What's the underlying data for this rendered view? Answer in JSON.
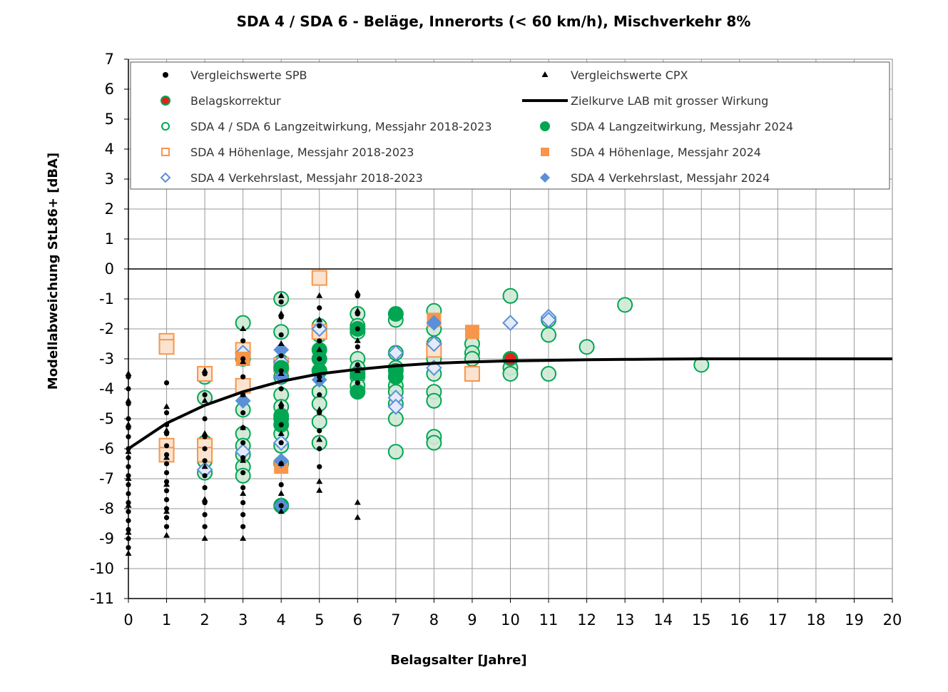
{
  "chart_data": {
    "type": "scatter",
    "title": "SDA 4 / SDA 6 - Beläge, Innerorts (< 60 km/h), Mischverkehr 8%",
    "xlabel": "Belagsalter [Jahre]",
    "ylabel": "Modellabweichung StL86+ [dBA]",
    "xlim": [
      0,
      20
    ],
    "ylim": [
      -11,
      7
    ],
    "xticks": [
      "0",
      "1",
      "2",
      "3",
      "4",
      "5",
      "6",
      "7",
      "8",
      "9",
      "10",
      "11",
      "12",
      "13",
      "14",
      "15",
      "16",
      "17",
      "18",
      "19",
      "20"
    ],
    "yticks": [
      "7",
      "6",
      "5",
      "4",
      "3",
      "2",
      "1",
      "0",
      "-1",
      "-2",
      "-3",
      "-4",
      "-5",
      "-6",
      "-7",
      "-8",
      "-9",
      "-10",
      "-11"
    ],
    "grid": true,
    "legend_position": "top",
    "colors": {
      "black": "#000000",
      "red": "#e3231b",
      "green": "#00a651",
      "orange": "#f7964a",
      "blue": "#5b8fd8"
    },
    "series": [
      {
        "name": "Vergleichswerte SPB",
        "marker": "dot-black",
        "points": [
          [
            0,
            -3.6
          ],
          [
            0,
            -4.0
          ],
          [
            0,
            -4.5
          ],
          [
            0,
            -5.0
          ],
          [
            0,
            -5.3
          ],
          [
            0,
            -5.6
          ],
          [
            0,
            -6.0
          ],
          [
            0,
            -6.3
          ],
          [
            0,
            -6.6
          ],
          [
            0,
            -6.9
          ],
          [
            0,
            -7.2
          ],
          [
            0,
            -7.5
          ],
          [
            0,
            -7.8
          ],
          [
            0,
            -8.1
          ],
          [
            0,
            -8.4
          ],
          [
            0,
            -8.7
          ],
          [
            0,
            -9.0
          ],
          [
            0,
            -9.3
          ],
          [
            1,
            -3.8
          ],
          [
            1,
            -4.8
          ],
          [
            1,
            -5.2
          ],
          [
            1,
            -5.5
          ],
          [
            1,
            -5.9
          ],
          [
            1,
            -6.2
          ],
          [
            1,
            -6.5
          ],
          [
            1,
            -6.8
          ],
          [
            1,
            -7.1
          ],
          [
            1,
            -7.4
          ],
          [
            1,
            -7.7
          ],
          [
            1,
            -8.0
          ],
          [
            1,
            -8.3
          ],
          [
            1,
            -8.6
          ],
          [
            2,
            -3.5
          ],
          [
            2,
            -4.2
          ],
          [
            2,
            -5.0
          ],
          [
            2,
            -5.6
          ],
          [
            2,
            -6.0
          ],
          [
            2,
            -6.4
          ],
          [
            2,
            -6.9
          ],
          [
            2,
            -7.3
          ],
          [
            2,
            -7.8
          ],
          [
            2,
            -8.2
          ],
          [
            2,
            -8.6
          ],
          [
            3,
            -2.4
          ],
          [
            3,
            -3.0
          ],
          [
            3,
            -3.6
          ],
          [
            3,
            -4.2
          ],
          [
            3,
            -4.8
          ],
          [
            3,
            -5.3
          ],
          [
            3,
            -5.8
          ],
          [
            3,
            -6.3
          ],
          [
            3,
            -6.8
          ],
          [
            3,
            -7.3
          ],
          [
            3,
            -7.8
          ],
          [
            3,
            -8.2
          ],
          [
            3,
            -8.6
          ],
          [
            4,
            -1.1
          ],
          [
            4,
            -1.6
          ],
          [
            4,
            -2.2
          ],
          [
            4,
            -2.9
          ],
          [
            4,
            -3.4
          ],
          [
            4,
            -4.0
          ],
          [
            4,
            -4.6
          ],
          [
            4,
            -5.2
          ],
          [
            4,
            -5.8
          ],
          [
            4,
            -6.5
          ],
          [
            4,
            -7.2
          ],
          [
            4,
            -7.9
          ],
          [
            5,
            -1.3
          ],
          [
            5,
            -1.9
          ],
          [
            5,
            -2.4
          ],
          [
            5,
            -3.0
          ],
          [
            5,
            -3.6
          ],
          [
            5,
            -4.2
          ],
          [
            5,
            -4.8
          ],
          [
            5,
            -5.4
          ],
          [
            5,
            -6.0
          ],
          [
            5,
            -6.6
          ],
          [
            6,
            -0.9
          ],
          [
            6,
            -1.5
          ],
          [
            6,
            -2.0
          ],
          [
            6,
            -2.6
          ],
          [
            6,
            -3.2
          ],
          [
            6,
            -3.8
          ]
        ]
      },
      {
        "name": "Vergleichswerte CPX",
        "marker": "triangle-black",
        "points": [
          [
            0,
            -3.5
          ],
          [
            0,
            -4.4
          ],
          [
            0,
            -5.2
          ],
          [
            0,
            -6.1
          ],
          [
            0,
            -7.0
          ],
          [
            0,
            -7.9
          ],
          [
            0,
            -8.8
          ],
          [
            0,
            -9.5
          ],
          [
            1,
            -4.6
          ],
          [
            1,
            -5.4
          ],
          [
            1,
            -6.3
          ],
          [
            1,
            -7.2
          ],
          [
            1,
            -8.1
          ],
          [
            1,
            -8.9
          ],
          [
            2,
            -3.4
          ],
          [
            2,
            -4.4
          ],
          [
            2,
            -5.5
          ],
          [
            2,
            -6.6
          ],
          [
            2,
            -7.7
          ],
          [
            2,
            -9.0
          ],
          [
            3,
            -2.0
          ],
          [
            3,
            -3.1
          ],
          [
            3,
            -4.2
          ],
          [
            3,
            -5.3
          ],
          [
            3,
            -6.4
          ],
          [
            3,
            -7.5
          ],
          [
            3,
            -9.0
          ],
          [
            4,
            -0.9
          ],
          [
            4,
            -1.5
          ],
          [
            4,
            -2.5
          ],
          [
            4,
            -3.5
          ],
          [
            4,
            -4.5
          ],
          [
            4,
            -5.5
          ],
          [
            4,
            -6.5
          ],
          [
            4,
            -7.5
          ],
          [
            4,
            -8.1
          ],
          [
            5,
            -0.9
          ],
          [
            5,
            -1.7
          ],
          [
            5,
            -2.7
          ],
          [
            5,
            -3.7
          ],
          [
            5,
            -4.7
          ],
          [
            5,
            -5.7
          ],
          [
            5,
            -7.1
          ],
          [
            5,
            -7.4
          ],
          [
            6,
            -0.8
          ],
          [
            6,
            -1.4
          ],
          [
            6,
            -2.4
          ],
          [
            6,
            -3.4
          ],
          [
            6,
            -7.8
          ],
          [
            6,
            -8.3
          ]
        ]
      },
      {
        "name": "Belagskorrektur",
        "marker": "dot-red",
        "points": [
          [
            10,
            -3.0
          ]
        ]
      },
      {
        "name": "Zielkurve LAB mit grosser Wirkung",
        "marker": "line-black",
        "points": [
          [
            0,
            -6.0
          ],
          [
            1,
            -5.15
          ],
          [
            2,
            -4.55
          ],
          [
            3,
            -4.1
          ],
          [
            4,
            -3.75
          ],
          [
            5,
            -3.5
          ],
          [
            6,
            -3.35
          ],
          [
            7,
            -3.23
          ],
          [
            8,
            -3.15
          ],
          [
            9,
            -3.1
          ],
          [
            10,
            -3.07
          ],
          [
            11,
            -3.05
          ],
          [
            12,
            -3.03
          ],
          [
            13,
            -3.02
          ],
          [
            14,
            -3.01
          ],
          [
            15,
            -3.0
          ],
          [
            16,
            -3.0
          ],
          [
            17,
            -3.0
          ],
          [
            18,
            -3.0
          ],
          [
            19,
            -3.0
          ],
          [
            20,
            -3.0
          ]
        ]
      },
      {
        "name": "SDA 4 / SDA 6 Langzeitwirkung, Messjahr 2018-2023",
        "marker": "circle-green-open",
        "points": [
          [
            2,
            -3.6
          ],
          [
            2,
            -4.3
          ],
          [
            2,
            -5.8
          ],
          [
            2,
            -6.1
          ],
          [
            2,
            -6.4
          ],
          [
            2,
            -6.8
          ],
          [
            3,
            -1.8
          ],
          [
            3,
            -3.0
          ],
          [
            3,
            -3.9
          ],
          [
            3,
            -4.7
          ],
          [
            3,
            -5.5
          ],
          [
            3,
            -5.9
          ],
          [
            3,
            -6.2
          ],
          [
            3,
            -6.6
          ],
          [
            3,
            -6.9
          ],
          [
            4,
            -1.0
          ],
          [
            4,
            -2.1
          ],
          [
            4,
            -3.1
          ],
          [
            4,
            -3.6
          ],
          [
            4,
            -4.2
          ],
          [
            4,
            -4.6
          ],
          [
            4,
            -5.0
          ],
          [
            4,
            -5.5
          ],
          [
            4,
            -5.9
          ],
          [
            4,
            -6.5
          ],
          [
            4,
            -7.9
          ],
          [
            5,
            -1.9
          ],
          [
            5,
            -2.2
          ],
          [
            5,
            -3.4
          ],
          [
            5,
            -4.1
          ],
          [
            5,
            -4.5
          ],
          [
            5,
            -5.1
          ],
          [
            5,
            -5.8
          ],
          [
            6,
            -1.5
          ],
          [
            6,
            -1.9
          ],
          [
            6,
            -2.1
          ],
          [
            6,
            -3.0
          ],
          [
            6,
            -3.3
          ],
          [
            6,
            -3.6
          ],
          [
            6,
            -3.9
          ],
          [
            7,
            -1.7
          ],
          [
            7,
            -2.8
          ],
          [
            7,
            -3.3
          ],
          [
            7,
            -3.9
          ],
          [
            7,
            -4.1
          ],
          [
            7,
            -4.5
          ],
          [
            7,
            -5.0
          ],
          [
            7,
            -6.1
          ],
          [
            8,
            -1.4
          ],
          [
            8,
            -2.0
          ],
          [
            8,
            -2.5
          ],
          [
            8,
            -3.0
          ],
          [
            8,
            -3.5
          ],
          [
            8,
            -4.1
          ],
          [
            8,
            -4.4
          ],
          [
            8,
            -5.6
          ],
          [
            8,
            -5.8
          ],
          [
            9,
            -2.5
          ],
          [
            9,
            -2.8
          ],
          [
            9,
            -3.0
          ],
          [
            10,
            -0.9
          ],
          [
            10,
            -3.0
          ],
          [
            10,
            -3.3
          ],
          [
            10,
            -3.5
          ],
          [
            11,
            -1.7
          ],
          [
            11,
            -2.2
          ],
          [
            11,
            -3.5
          ],
          [
            12,
            -2.6
          ],
          [
            13,
            -1.2
          ],
          [
            15,
            -3.2
          ]
        ]
      },
      {
        "name": "SDA 4 Langzeitwirkung, Messjahr 2024",
        "marker": "circle-green-filled",
        "points": [
          [
            4,
            -3.3
          ],
          [
            4,
            -4.9
          ],
          [
            4,
            -5.2
          ],
          [
            4,
            -7.9
          ],
          [
            5,
            -2.7
          ],
          [
            5,
            -3.0
          ],
          [
            5,
            -3.4
          ],
          [
            6,
            -2.0
          ],
          [
            6,
            -3.5
          ],
          [
            6,
            -4.1
          ],
          [
            7,
            -1.5
          ],
          [
            7,
            -3.4
          ],
          [
            7,
            -3.6
          ]
        ]
      },
      {
        "name": "SDA 4 Höhenlage, Messjahr 2018-2023",
        "marker": "square-orange-open",
        "points": [
          [
            1,
            -2.4
          ],
          [
            1,
            -2.6
          ],
          [
            1,
            -5.9
          ],
          [
            1,
            -6.2
          ],
          [
            2,
            -3.5
          ],
          [
            2,
            -5.9
          ],
          [
            2,
            -6.2
          ],
          [
            3,
            -2.7
          ],
          [
            3,
            -3.9
          ],
          [
            4,
            -3.2
          ],
          [
            5,
            -0.3
          ],
          [
            5,
            -2.1
          ],
          [
            8,
            -2.7
          ],
          [
            9,
            -3.5
          ]
        ]
      },
      {
        "name": "SDA 4 Höhenlage, Messjahr 2024",
        "marker": "square-orange-filled",
        "points": [
          [
            3,
            -3.0
          ],
          [
            4,
            -6.6
          ],
          [
            8,
            -1.7
          ],
          [
            9,
            -2.1
          ]
        ]
      },
      {
        "name": "SDA 4 Verkehrslast, Messjahr 2018-2023",
        "marker": "diamond-blue-open",
        "points": [
          [
            2,
            -6.7
          ],
          [
            3,
            -2.8
          ],
          [
            3,
            -6.1
          ],
          [
            4,
            -3.1
          ],
          [
            4,
            -5.8
          ],
          [
            5,
            -2.0
          ],
          [
            6,
            -3.4
          ],
          [
            7,
            -2.8
          ],
          [
            7,
            -4.3
          ],
          [
            7,
            -4.6
          ],
          [
            8,
            -2.5
          ],
          [
            8,
            -3.3
          ],
          [
            10,
            -1.8
          ],
          [
            11,
            -1.6
          ],
          [
            11,
            -1.7
          ]
        ]
      },
      {
        "name": "SDA 4 Verkehrslast, Messjahr 2024",
        "marker": "diamond-blue-filled",
        "points": [
          [
            3,
            -4.4
          ],
          [
            4,
            -2.7
          ],
          [
            4,
            -3.6
          ],
          [
            4,
            -6.4
          ],
          [
            4,
            -7.9
          ],
          [
            5,
            -3.7
          ],
          [
            8,
            -1.8
          ]
        ]
      }
    ]
  }
}
